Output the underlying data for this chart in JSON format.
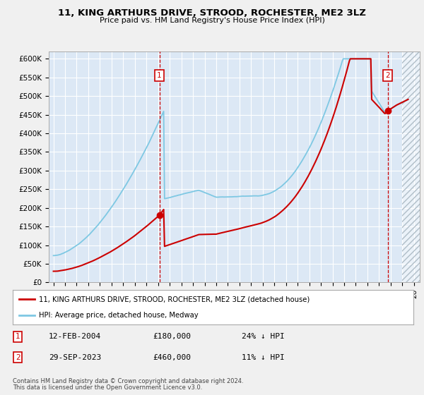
{
  "title": "11, KING ARTHURS DRIVE, STROOD, ROCHESTER, ME2 3LZ",
  "subtitle": "Price paid vs. HM Land Registry's House Price Index (HPI)",
  "ylim": [
    0,
    620000
  ],
  "yticks": [
    0,
    50000,
    100000,
    150000,
    200000,
    250000,
    300000,
    350000,
    400000,
    450000,
    500000,
    550000,
    600000
  ],
  "ytick_labels": [
    "£0",
    "£50K",
    "£100K",
    "£150K",
    "£200K",
    "£250K",
    "£300K",
    "£350K",
    "£400K",
    "£450K",
    "£500K",
    "£550K",
    "£600K"
  ],
  "fig_bg_color": "#f0f0f0",
  "plot_bg_color": "#dce8f5",
  "grid_color": "#ffffff",
  "hpi_color": "#7ec8e3",
  "price_color": "#cc0000",
  "marker1_date_x": 2004.11,
  "marker2_date_x": 2023.74,
  "marker1_price": 180000,
  "marker2_price": 460000,
  "legend_label1": "11, KING ARTHURS DRIVE, STROOD, ROCHESTER, ME2 3LZ (detached house)",
  "legend_label2": "HPI: Average price, detached house, Medway",
  "table_row1": [
    "1",
    "12-FEB-2004",
    "£180,000",
    "24% ↓ HPI"
  ],
  "table_row2": [
    "2",
    "29-SEP-2023",
    "£460,000",
    "11% ↓ HPI"
  ],
  "footnote1": "Contains HM Land Registry data © Crown copyright and database right 2024.",
  "footnote2": "This data is licensed under the Open Government Licence v3.0.",
  "hatch_color": "#b0bec8",
  "xmin": 1994.6,
  "xmax": 2026.5,
  "future_start": 2025.0
}
